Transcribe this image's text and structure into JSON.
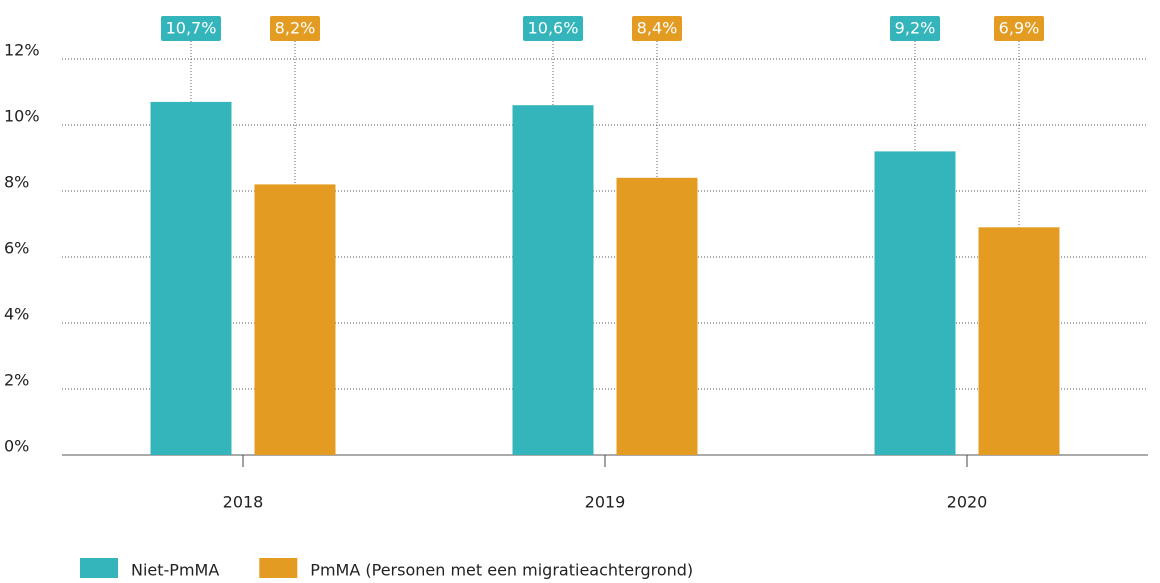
{
  "chart_data": {
    "type": "bar",
    "categories": [
      "2018",
      "2019",
      "2020"
    ],
    "series": [
      {
        "name": "Niet-PmMA",
        "color": "#33b5bb",
        "values": [
          10.7,
          10.6,
          9.2
        ],
        "value_labels": [
          "10,7%",
          "10,6%",
          "9,2%"
        ]
      },
      {
        "name": "PmMA (Personen met een migratieachtergrond)",
        "color": "#e39b22",
        "values": [
          8.2,
          8.4,
          6.9
        ],
        "value_labels": [
          "8,2%",
          "8,4%",
          "6,9%"
        ]
      }
    ],
    "ylim": [
      0,
      12
    ],
    "yticks": [
      {
        "value": 0,
        "label": "0%"
      },
      {
        "value": 2,
        "label": "2%"
      },
      {
        "value": 4,
        "label": "4%"
      },
      {
        "value": 6,
        "label": "6%"
      },
      {
        "value": 8,
        "label": "8%"
      },
      {
        "value": 10,
        "label": "10%"
      },
      {
        "value": 12,
        "label": "12%"
      }
    ],
    "grid": true
  }
}
